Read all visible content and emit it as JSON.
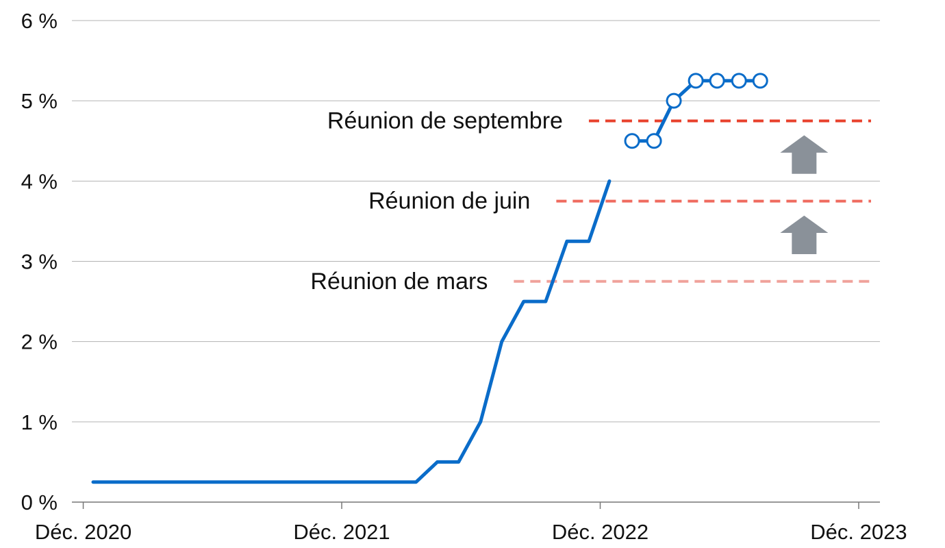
{
  "chart_data": {
    "type": "line",
    "title": "",
    "xlabel": "",
    "ylabel": "",
    "ylim": [
      0,
      6
    ],
    "xlim": [
      "2020-11-15",
      "2023-12-31"
    ],
    "y_ticks": [
      0,
      1,
      2,
      3,
      4,
      5,
      6
    ],
    "y_tick_labels": [
      "0 %",
      "1 %",
      "2 %",
      "3 %",
      "4 %",
      "5 %",
      "6 %"
    ],
    "x_ticks": [
      "2020-12-01",
      "2021-12-01",
      "2022-12-01",
      "2023-12-01"
    ],
    "x_tick_labels": [
      "Déc. 2020",
      "Déc. 2021",
      "Déc. 2022",
      "Déc. 2023"
    ],
    "grid": "horizontal",
    "series": [
      {
        "style": "solid-line",
        "color": "#0a6cc9",
        "points": [
          {
            "x": "2020-12-15",
            "y": 0.25
          },
          {
            "x": "2021-03-01",
            "y": 0.25
          },
          {
            "x": "2021-06-01",
            "y": 0.25
          },
          {
            "x": "2021-09-01",
            "y": 0.25
          },
          {
            "x": "2022-03-16",
            "y": 0.25
          },
          {
            "x": "2022-04-15",
            "y": 0.5
          },
          {
            "x": "2022-05-15",
            "y": 0.5
          },
          {
            "x": "2022-06-15",
            "y": 1.0
          },
          {
            "x": "2022-07-15",
            "y": 2.0
          },
          {
            "x": "2022-08-15",
            "y": 2.5
          },
          {
            "x": "2022-09-15",
            "y": 2.5
          },
          {
            "x": "2022-10-15",
            "y": 3.25
          },
          {
            "x": "2022-11-15",
            "y": 3.25
          },
          {
            "x": "2022-12-14",
            "y": 4.0
          }
        ]
      },
      {
        "style": "line-with-hollow-markers",
        "color": "#0a6cc9",
        "points": [
          {
            "x": "2023-01-15",
            "y": 4.5
          },
          {
            "x": "2023-02-15",
            "y": 4.5
          },
          {
            "x": "2023-03-15",
            "y": 5.0
          },
          {
            "x": "2023-04-15",
            "y": 5.25
          },
          {
            "x": "2023-05-15",
            "y": 5.25
          },
          {
            "x": "2023-06-15",
            "y": 5.25
          },
          {
            "x": "2023-07-15",
            "y": 5.25
          }
        ]
      }
    ],
    "reference_lines": [
      {
        "label": "Réunion de mars",
        "y": 2.75,
        "x_start": "2022-08-01",
        "color": "#f0a29b"
      },
      {
        "label": "Réunion de juin",
        "y": 3.75,
        "x_start": "2022-09-30",
        "color": "#ef6b5f"
      },
      {
        "label": "Réunion de septembre",
        "y": 4.75,
        "x_start": "2022-11-15",
        "color": "#e8412c"
      }
    ],
    "annotations": [
      {
        "type": "up-arrow",
        "between": [
          "Réunion de mars",
          "Réunion de juin"
        ],
        "color": "#8a9199"
      },
      {
        "type": "up-arrow",
        "between": [
          "Réunion de juin",
          "Réunion de septembre"
        ],
        "color": "#8a9199"
      }
    ],
    "colors": {
      "grid": "#b3b3b3",
      "axis": "#777777",
      "text": "#111111",
      "marker_fill": "#ffffff"
    }
  }
}
